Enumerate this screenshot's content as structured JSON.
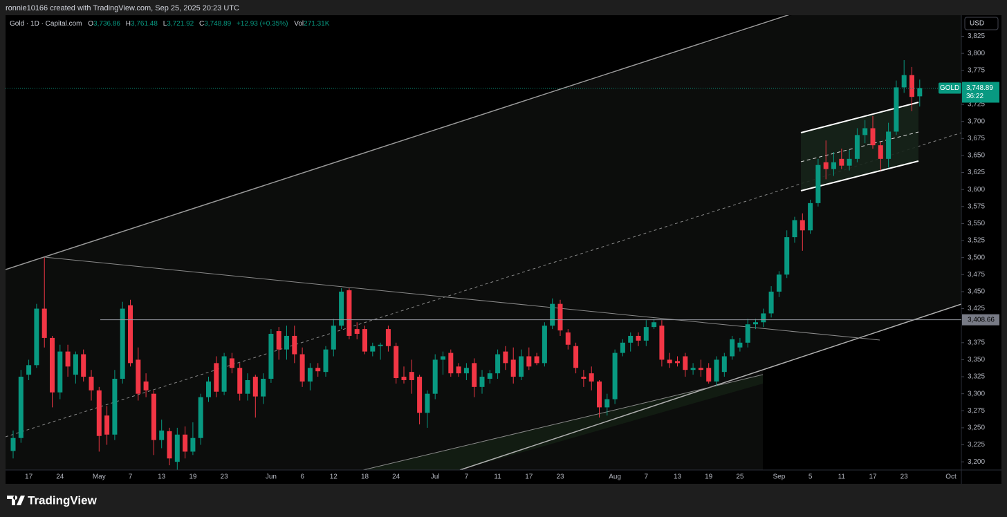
{
  "header": {
    "credit": "ronnie10166 created with TradingView.com, Sep 25, 2025 20:23 UTC"
  },
  "chart_data": {
    "type": "candlestick",
    "title": "Gold · 1D · Capital.com",
    "legend": [
      {
        "key": "O",
        "value": "3,736.86"
      },
      {
        "key": "H",
        "value": "3,761.48"
      },
      {
        "key": "L",
        "value": "3,721.92"
      },
      {
        "key": "C",
        "value": "3,748.89"
      }
    ],
    "change": "+12.93 (+0.35%)",
    "volume": {
      "key": "Vol",
      "value": "271.31K"
    },
    "currency": "USD",
    "categories": [
      null,
      null,
      "17",
      null,
      null,
      null,
      "24",
      null,
      null,
      null,
      null,
      "May",
      null,
      null,
      null,
      "7",
      null,
      null,
      null,
      "13",
      null,
      null,
      null,
      "19",
      null,
      null,
      null,
      "23",
      null,
      null,
      null,
      null,
      null,
      "Jun",
      null,
      null,
      null,
      "6",
      null,
      null,
      null,
      "12",
      null,
      null,
      null,
      "18",
      null,
      null,
      null,
      "24",
      null,
      null,
      null,
      null,
      "Jul",
      null,
      null,
      null,
      "7",
      null,
      null,
      null,
      "11",
      null,
      null,
      null,
      "17",
      null,
      null,
      null,
      "23",
      null,
      null,
      null,
      null,
      null,
      null,
      "Aug",
      null,
      null,
      null,
      "7",
      null,
      null,
      null,
      "13",
      null,
      null,
      null,
      "19",
      null,
      null,
      null,
      "25",
      null,
      null,
      null,
      null,
      "Sep",
      null,
      null,
      null,
      "5",
      null,
      null,
      null,
      "11",
      null,
      null,
      null,
      "17",
      null,
      null,
      null,
      "23",
      null,
      null,
      null,
      null,
      null,
      "Oct"
    ],
    "open": [
      3216,
      3235,
      3328,
      3342,
      3425,
      3382,
      3302,
      3362,
      3328,
      3358,
      3325,
      3305,
      3268,
      3240,
      3322,
      3430,
      3350,
      3318,
      3300,
      3232,
      3245,
      3200,
      3240,
      3215,
      3235,
      3295,
      3345,
      3303,
      3352,
      3338,
      3300,
      3325,
      3296,
      3322,
      3392,
      3365,
      3385,
      3358,
      3318,
      3338,
      3332,
      3365,
      3400,
      3452,
      3395,
      3395,
      3362,
      3370,
      3395,
      3370,
      3325,
      3332,
      3325,
      3272,
      3300,
      3350,
      3360,
      3340,
      3330,
      3345,
      3310,
      3322,
      3330,
      3362,
      3350,
      3325,
      3355,
      3355,
      3345,
      3400,
      3432,
      3390,
      3370,
      3325,
      3330,
      3318,
      3280,
      3292,
      3360,
      3375,
      3385,
      3378,
      3398,
      3400,
      3350,
      3348,
      3355,
      3335,
      3338,
      3338,
      3318,
      3332,
      3355,
      3368,
      3375,
      3402,
      3405,
      3418,
      3450,
      3475,
      3530,
      3555,
      3540,
      3580,
      3640,
      3630,
      3645,
      3635,
      3645,
      3680,
      3690,
      3665,
      3645,
      3685,
      3750,
      3768,
      3736.86,
      null,
      null,
      null,
      null
    ],
    "high": [
      3246,
      3335,
      3350,
      3432,
      3500,
      3385,
      3372,
      3372,
      3362,
      3365,
      3335,
      3310,
      3282,
      3335,
      3435,
      3438,
      3368,
      3330,
      3305,
      3262,
      3250,
      3250,
      3252,
      3258,
      3300,
      3325,
      3355,
      3360,
      3360,
      3345,
      3330,
      3328,
      3330,
      3395,
      3398,
      3400,
      3400,
      3368,
      3345,
      3345,
      3370,
      3410,
      3455,
      3455,
      3405,
      3400,
      3375,
      3375,
      3400,
      3375,
      3340,
      3350,
      3328,
      3305,
      3358,
      3362,
      3365,
      3345,
      3345,
      3352,
      3335,
      3335,
      3365,
      3370,
      3368,
      3365,
      3368,
      3360,
      3405,
      3440,
      3438,
      3395,
      3375,
      3335,
      3340,
      3320,
      3300,
      3365,
      3380,
      3390,
      3390,
      3408,
      3410,
      3408,
      3360,
      3355,
      3360,
      3345,
      3350,
      3345,
      3355,
      3360,
      3385,
      3382,
      3410,
      3410,
      3425,
      3458,
      3480,
      3540,
      3560,
      3565,
      3585,
      3645,
      3672,
      3655,
      3660,
      3658,
      3690,
      3702,
      3708,
      3670,
      3698,
      3760,
      3790,
      3780,
      3761.48,
      null,
      null,
      null,
      null
    ],
    "low": [
      3205,
      3228,
      3320,
      3338,
      3368,
      3280,
      3292,
      3325,
      3315,
      3318,
      3290,
      3215,
      3225,
      3232,
      3315,
      3340,
      3290,
      3295,
      3210,
      3220,
      3195,
      3188,
      3205,
      3210,
      3225,
      3288,
      3295,
      3298,
      3330,
      3290,
      3290,
      3265,
      3285,
      3316,
      3350,
      3350,
      3345,
      3310,
      3305,
      3325,
      3325,
      3355,
      3395,
      3380,
      3380,
      3358,
      3355,
      3350,
      3362,
      3315,
      3315,
      3300,
      3255,
      3250,
      3292,
      3328,
      3325,
      3325,
      3320,
      3295,
      3300,
      3315,
      3322,
      3335,
      3315,
      3320,
      3335,
      3342,
      3340,
      3395,
      3385,
      3365,
      3330,
      3310,
      3305,
      3265,
      3268,
      3285,
      3355,
      3362,
      3370,
      3370,
      3395,
      3340,
      3338,
      3340,
      3325,
      3328,
      3325,
      3315,
      3312,
      3325,
      3350,
      3362,
      3368,
      3395,
      3398,
      3412,
      3442,
      3470,
      3522,
      3510,
      3535,
      3575,
      3615,
      3620,
      3630,
      3628,
      3640,
      3668,
      3660,
      3628,
      3632,
      3680,
      3742,
      3715,
      3721.92,
      null,
      null,
      null,
      null
    ],
    "close": [
      3235,
      3325,
      3342,
      3425,
      3382,
      3302,
      3362,
      3340,
      3358,
      3325,
      3305,
      3238,
      3240,
      3322,
      3425,
      3345,
      3300,
      3305,
      3232,
      3246,
      3205,
      3240,
      3215,
      3235,
      3295,
      3318,
      3303,
      3355,
      3338,
      3300,
      3320,
      3296,
      3322,
      3388,
      3365,
      3385,
      3358,
      3318,
      3338,
      3333,
      3365,
      3400,
      3450,
      3385,
      3388,
      3362,
      3370,
      3372,
      3370,
      3323,
      3320,
      3320,
      3272,
      3300,
      3350,
      3355,
      3330,
      3330,
      3338,
      3310,
      3325,
      3330,
      3358,
      3345,
      3325,
      3355,
      3340,
      3345,
      3400,
      3432,
      3393,
      3372,
      3338,
      3322,
      3318,
      3280,
      3292,
      3360,
      3375,
      3385,
      3378,
      3398,
      3405,
      3350,
      3345,
      3345,
      3335,
      3338,
      3335,
      3318,
      3350,
      3355,
      3380,
      3375,
      3402,
      3405,
      3418,
      3450,
      3475,
      3530,
      3555,
      3540,
      3580,
      3636,
      3630,
      3640,
      3635,
      3645,
      3680,
      3690,
      3665,
      3645,
      3685,
      3750,
      3768,
      3736,
      3748.89,
      null,
      null,
      null,
      null
    ],
    "up_color": "#089981",
    "down_color": "#f23645",
    "ylim": [
      3188,
      3856
    ],
    "yticks": [
      {
        "value": 3200,
        "label": "3,200"
      },
      {
        "value": 3225,
        "label": "3,225"
      },
      {
        "value": 3250,
        "label": "3,250"
      },
      {
        "value": 3275,
        "label": "3,275"
      },
      {
        "value": 3300,
        "label": "3,300"
      },
      {
        "value": 3325,
        "label": "3,325"
      },
      {
        "value": 3350,
        "label": "3,350"
      },
      {
        "value": 3375,
        "label": "3,375"
      },
      {
        "value": 3425,
        "label": "3,425"
      },
      {
        "value": 3450,
        "label": "3,450"
      },
      {
        "value": 3475,
        "label": "3,475"
      },
      {
        "value": 3500,
        "label": "3,500"
      },
      {
        "value": 3525,
        "label": "3,525"
      },
      {
        "value": 3550,
        "label": "3,550"
      },
      {
        "value": 3575,
        "label": "3,575"
      },
      {
        "value": 3600,
        "label": "3,600"
      },
      {
        "value": 3625,
        "label": "3,625"
      },
      {
        "value": 3650,
        "label": "3,650"
      },
      {
        "value": 3675,
        "label": "3,675"
      },
      {
        "value": 3700,
        "label": "3,700"
      },
      {
        "value": 3725,
        "label": "3,725"
      },
      {
        "value": 3775,
        "label": "3,775"
      },
      {
        "value": 3800,
        "label": "3,800"
      },
      {
        "value": 3825,
        "label": "3,825"
      }
    ],
    "hline": {
      "value": 3408.66,
      "label": "3,408.66"
    },
    "last_price": {
      "symbol": "GOLD",
      "value": 3748.89,
      "label": "3,748.89",
      "countdown": "36:22"
    }
  },
  "footer": {
    "logo": "TradingView"
  }
}
